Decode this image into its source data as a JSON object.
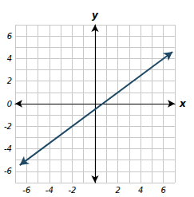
{
  "chart_data": {
    "type": "line",
    "x": [
      -6.6,
      6.8
    ],
    "values": [
      -5.45,
      4.6
    ],
    "color": "#1f4a66",
    "marker": "arrow",
    "xlabel": "x",
    "ylabel": "y",
    "xlim": [
      -7,
      7
    ],
    "ylim": [
      -7,
      7
    ],
    "xticks": [
      -6,
      -4,
      -2,
      2,
      4,
      6
    ],
    "yticks": [
      -6,
      -4,
      -2,
      0,
      2,
      4,
      6
    ],
    "grid": true
  }
}
